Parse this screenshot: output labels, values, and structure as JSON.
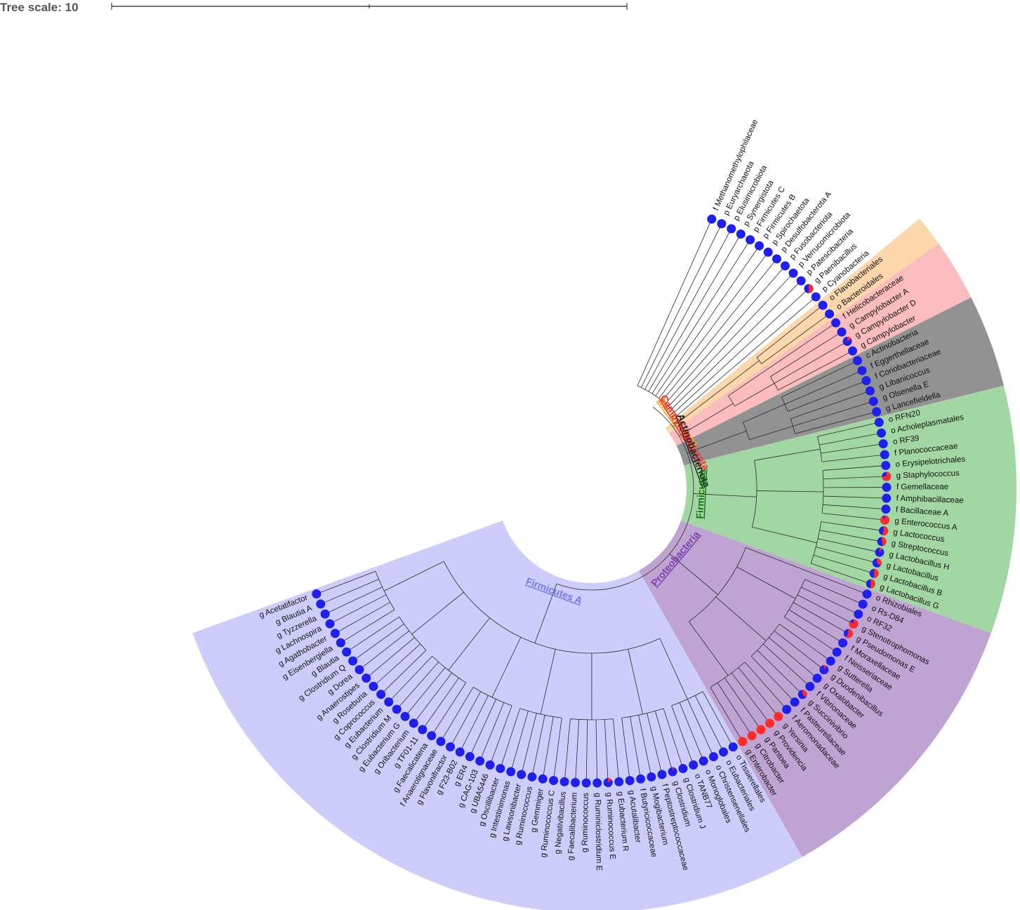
{
  "scale": {
    "label": "Tree scale: 10"
  },
  "colors": {
    "blue": "#1f1fee",
    "red": "#ff2a2a",
    "line": "#2a2a2a",
    "clades": {
      "firmicutes_a": "#cccdfa",
      "bacteroidota": "#fbd7ab",
      "campylobacterota": "#fbbcbd",
      "actinobacteriota": "#929292",
      "firmicutes": "#a2d6a2",
      "proteobacteria": "#bfa3d3"
    }
  },
  "clades": [
    {
      "id": "firmicutes-a",
      "name": "Firmicutes A",
      "color": "#cccdfa",
      "label_color": "#7777ee"
    },
    {
      "id": "bacteroidota",
      "name": "Bacteroidota",
      "color": "#fbd7ab",
      "label_color": "#ff9a1a"
    },
    {
      "id": "campylobacterota",
      "name": "Campylobacterota",
      "color": "#fbbcbd",
      "label_color": "#ff2a2a"
    },
    {
      "id": "actinobacteriota",
      "name": "Actinobacteriota",
      "color": "#929292",
      "label_color": "#222222"
    },
    {
      "id": "firmicutes",
      "name": "Firmicutes",
      "color": "#a2d6a2",
      "label_color": "#117711"
    },
    {
      "id": "proteobacteria",
      "name": "Proteobacteria",
      "color": "#bfa3d3",
      "label_color": "#7a3fa8"
    }
  ],
  "leaves": [
    {
      "label": "g Acetatifactor",
      "red": 0,
      "clade": "firmicutes-a"
    },
    {
      "label": "g Blautia A",
      "red": 0,
      "clade": "firmicutes-a"
    },
    {
      "label": "g Tyzzerella",
      "red": 0,
      "clade": "firmicutes-a"
    },
    {
      "label": "g Lachnospira",
      "red": 0,
      "clade": "firmicutes-a"
    },
    {
      "label": "g Agathobacter",
      "red": 0,
      "clade": "firmicutes-a"
    },
    {
      "label": "g Eisenbergiella",
      "red": 0,
      "clade": "firmicutes-a"
    },
    {
      "label": "g Blautia",
      "red": 0,
      "clade": "firmicutes-a"
    },
    {
      "label": "g Clostridium Q",
      "red": 0,
      "clade": "firmicutes-a"
    },
    {
      "label": "g Dorea",
      "red": 0,
      "clade": "firmicutes-a"
    },
    {
      "label": "g Anaerostipes",
      "red": 0,
      "clade": "firmicutes-a"
    },
    {
      "label": "g Roseburia",
      "red": 0,
      "clade": "firmicutes-a"
    },
    {
      "label": "g Coprococcus",
      "red": 0,
      "clade": "firmicutes-a"
    },
    {
      "label": "g Eubacterium",
      "red": 0,
      "clade": "firmicutes-a"
    },
    {
      "label": "g Clostridium M",
      "red": 0,
      "clade": "firmicutes-a"
    },
    {
      "label": "g Eubacterium G",
      "red": 0,
      "clade": "firmicutes-a"
    },
    {
      "label": "g Oribacterium",
      "red": 0,
      "clade": "firmicutes-a"
    },
    {
      "label": "g TF01-11",
      "red": 0,
      "clade": "firmicutes-a"
    },
    {
      "label": "g Faecalicatena",
      "red": 0,
      "clade": "firmicutes-a"
    },
    {
      "label": "f Anaerotignaceae",
      "red": 0,
      "clade": "firmicutes-a"
    },
    {
      "label": "g Flavonifractor",
      "red": 0,
      "clade": "firmicutes-a"
    },
    {
      "label": "g F23-B02",
      "red": 0,
      "clade": "firmicutes-a"
    },
    {
      "label": "g ER4",
      "red": 0,
      "clade": "firmicutes-a"
    },
    {
      "label": "g CAG-103",
      "red": 0,
      "clade": "firmicutes-a"
    },
    {
      "label": "g UBA5446",
      "red": 0,
      "clade": "firmicutes-a"
    },
    {
      "label": "g Oscillibacter",
      "red": 0,
      "clade": "firmicutes-a"
    },
    {
      "label": "g Intestinimonas",
      "red": 0,
      "clade": "firmicutes-a"
    },
    {
      "label": "g Lawsonibacter",
      "red": 0,
      "clade": "firmicutes-a"
    },
    {
      "label": "g Ruminococcus",
      "red": 0,
      "clade": "firmicutes-a"
    },
    {
      "label": "g Gemmiger",
      "red": 0,
      "clade": "firmicutes-a"
    },
    {
      "label": "g Ruminococcus C",
      "red": 0,
      "clade": "firmicutes-a"
    },
    {
      "label": "g Negativibacillus",
      "red": 0,
      "clade": "firmicutes-a"
    },
    {
      "label": "g Faecalibacterium",
      "red": 0,
      "clade": "firmicutes-a"
    },
    {
      "label": "g Ruminococcus",
      "red": 0,
      "clade": "firmicutes-a"
    },
    {
      "label": "g Ruminiclostridium E",
      "red": 0,
      "clade": "firmicutes-a"
    },
    {
      "label": "g Ruminococcus E",
      "red": 0.15,
      "clade": "firmicutes-a"
    },
    {
      "label": "g Eubacterium R",
      "red": 0,
      "clade": "firmicutes-a"
    },
    {
      "label": "g Acutalibacter",
      "red": 0,
      "clade": "firmicutes-a"
    },
    {
      "label": "f Butyricicoccaceae",
      "red": 0,
      "clade": "firmicutes-a"
    },
    {
      "label": "g Mogibacterium",
      "red": 0,
      "clade": "firmicutes-a"
    },
    {
      "label": "f Peptostreptococcaceae",
      "red": 0,
      "clade": "firmicutes-a"
    },
    {
      "label": "g Clostridium",
      "red": 0.05,
      "clade": "firmicutes-a"
    },
    {
      "label": "g Clostridium J",
      "red": 0,
      "clade": "firmicutes-a"
    },
    {
      "label": "o TANB77",
      "red": 0,
      "clade": "firmicutes-a"
    },
    {
      "label": "o Monoglobales",
      "red": 0,
      "clade": "firmicutes-a"
    },
    {
      "label": "o Christensenellales",
      "red": 0,
      "clade": "firmicutes-a"
    },
    {
      "label": "o Eubacteriales",
      "red": 0,
      "clade": "firmicutes-a"
    },
    {
      "label": "o Tissierellales",
      "red": 0,
      "clade": "firmicutes-a"
    },
    {
      "label": "g Enterobacter",
      "red": 1,
      "clade": "proteobacteria"
    },
    {
      "label": "g Citrobacter",
      "red": 1,
      "clade": "proteobacteria"
    },
    {
      "label": "g Pantoea",
      "red": 1,
      "clade": "proteobacteria"
    },
    {
      "label": "g Providencia",
      "red": 1,
      "clade": "proteobacteria"
    },
    {
      "label": "g Yersinia",
      "red": 1,
      "clade": "proteobacteria"
    },
    {
      "label": "f Aeromonadaceae",
      "red": 0,
      "clade": "proteobacteria"
    },
    {
      "label": "f Pasteurellaceae",
      "red": 0,
      "clade": "proteobacteria"
    },
    {
      "label": "g Succinivibrio",
      "red": 0.35,
      "clade": "proteobacteria"
    },
    {
      "label": "f Vibrionaceae",
      "red": 0,
      "clade": "proteobacteria"
    },
    {
      "label": "g Oxalobacter",
      "red": 0,
      "clade": "proteobacteria"
    },
    {
      "label": "g Duodenibacillus",
      "red": 0.1,
      "clade": "proteobacteria"
    },
    {
      "label": "g Sutterella",
      "red": 0,
      "clade": "proteobacteria"
    },
    {
      "label": "f Neisseriaceae",
      "red": 0,
      "clade": "proteobacteria"
    },
    {
      "label": "f Moraxellaceae",
      "red": 0,
      "clade": "proteobacteria"
    },
    {
      "label": "g Pseudomonas E",
      "red": 0.6,
      "clade": "proteobacteria"
    },
    {
      "label": "g Stenotrophomonas",
      "red": 0.85,
      "clade": "proteobacteria"
    },
    {
      "label": "o RF32",
      "red": 0,
      "clade": "proteobacteria"
    },
    {
      "label": "o Rs-D84",
      "red": 0,
      "clade": "proteobacteria"
    },
    {
      "label": "o Rhizobiales",
      "red": 0,
      "clade": "proteobacteria"
    },
    {
      "label": "g Lactobacillus G",
      "red": 0.5,
      "clade": "firmicutes"
    },
    {
      "label": "g Lactobacillus B",
      "red": 0.5,
      "clade": "firmicutes"
    },
    {
      "label": "g Lactobacillus",
      "red": 0.35,
      "clade": "firmicutes"
    },
    {
      "label": "g Lactobacillus H",
      "red": 0.1,
      "clade": "firmicutes"
    },
    {
      "label": "g Streptococcus",
      "red": 0.45,
      "clade": "firmicutes"
    },
    {
      "label": "g Lactococcus",
      "red": 0.55,
      "clade": "firmicutes"
    },
    {
      "label": "g Enterococcus A",
      "red": 0.9,
      "clade": "firmicutes"
    },
    {
      "label": "f Bacillaceae A",
      "red": 0,
      "clade": "firmicutes"
    },
    {
      "label": "f Amphibacillaceae",
      "red": 0,
      "clade": "firmicutes"
    },
    {
      "label": "f Gemellaceae",
      "red": 0,
      "clade": "firmicutes"
    },
    {
      "label": "g Staphylococcus",
      "red": 0.75,
      "clade": "firmicutes"
    },
    {
      "label": "o Erysipelotrichales",
      "red": 0,
      "clade": "firmicutes"
    },
    {
      "label": "f Planococcaceae",
      "red": 0,
      "clade": "firmicutes"
    },
    {
      "label": "o RF39",
      "red": 0,
      "clade": "firmicutes"
    },
    {
      "label": "o Acholeplasmatales",
      "red": 0,
      "clade": "firmicutes"
    },
    {
      "label": "o RFN20",
      "red": 0,
      "clade": "firmicutes"
    },
    {
      "label": "g Lancefieldella",
      "red": 0,
      "clade": "actinobacteriota"
    },
    {
      "label": "g Olsenella E",
      "red": 0,
      "clade": "actinobacteriota"
    },
    {
      "label": "g Libanicoccus",
      "red": 0,
      "clade": "actinobacteriota"
    },
    {
      "label": "f Coriobacteriaceae",
      "red": 0,
      "clade": "actinobacteriota"
    },
    {
      "label": "f Eggerthellaceae",
      "red": 0,
      "clade": "actinobacteriota"
    },
    {
      "label": "c Actinobacteria",
      "red": 0,
      "clade": "actinobacteriota"
    },
    {
      "label": "g Campylobacter",
      "red": 0,
      "clade": "campylobacterota"
    },
    {
      "label": "g Campylobacter D",
      "red": 0.15,
      "clade": "campylobacterota"
    },
    {
      "label": "g Campylobacter A",
      "red": 0,
      "clade": "campylobacterota"
    },
    {
      "label": "f Helicobacteraceae",
      "red": 0,
      "clade": "campylobacterota"
    },
    {
      "label": "o Bacteroidales",
      "red": 0,
      "clade": "bacteroidota"
    },
    {
      "label": "o Flavobacteriales",
      "red": 0,
      "clade": "bacteroidota"
    },
    {
      "label": "p Cyanobacteria",
      "red": 0,
      "clade": "none"
    },
    {
      "label": "g Paenibacillus",
      "red": 0.5,
      "clade": "none"
    },
    {
      "label": "p Patescibacteria",
      "red": 0,
      "clade": "none"
    },
    {
      "label": "p Verrucomicrobiota",
      "red": 0,
      "clade": "none"
    },
    {
      "label": "p Fusobacteriota",
      "red": 0,
      "clade": "none"
    },
    {
      "label": "p Desulfobacterota A",
      "red": 0,
      "clade": "none"
    },
    {
      "label": "p Spirochaetota",
      "red": 0,
      "clade": "none"
    },
    {
      "label": "p Firmicutes B",
      "red": 0,
      "clade": "none"
    },
    {
      "label": "p Firmicutes C",
      "red": 0,
      "clade": "none"
    },
    {
      "label": "p Synergistota",
      "red": 0,
      "clade": "none"
    },
    {
      "label": "p Elusimicrobiota",
      "red": 0,
      "clade": "none"
    },
    {
      "label": "p Euryarchaeota",
      "red": 0,
      "clade": "none"
    },
    {
      "label": "f Methanomethylophilaceae",
      "red": 0,
      "clade": "none"
    }
  ]
}
